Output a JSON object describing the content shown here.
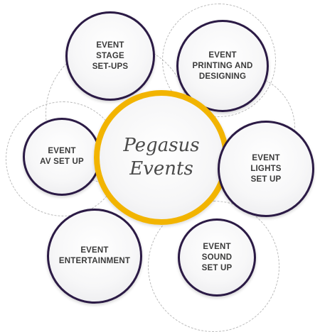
{
  "center": {
    "line1": "Pegasus",
    "line2": "Events",
    "ring_color": "#f2b400"
  },
  "nodes": {
    "stage": {
      "line1": "EVENT",
      "line2": "STAGE",
      "line3": "SET-UPS"
    },
    "printing": {
      "line1": "EVENT",
      "line2": "PRINTING AND",
      "line3": "DESIGNING"
    },
    "av": {
      "line1": "EVENT",
      "line2": "AV SET UP"
    },
    "lights": {
      "line1": "EVENT",
      "line2": "LIGHTS",
      "line3": "SET UP"
    },
    "entertainment": {
      "line1": "EVENT",
      "line2": "ENTERTAINMENT"
    },
    "sound": {
      "line1": "EVENT",
      "line2": "SOUND",
      "line3": "SET UP"
    }
  },
  "colors": {
    "node_border": "#2b1a45",
    "text": "#3a3a3a",
    "dashed_ring": "#b9b9b9"
  }
}
